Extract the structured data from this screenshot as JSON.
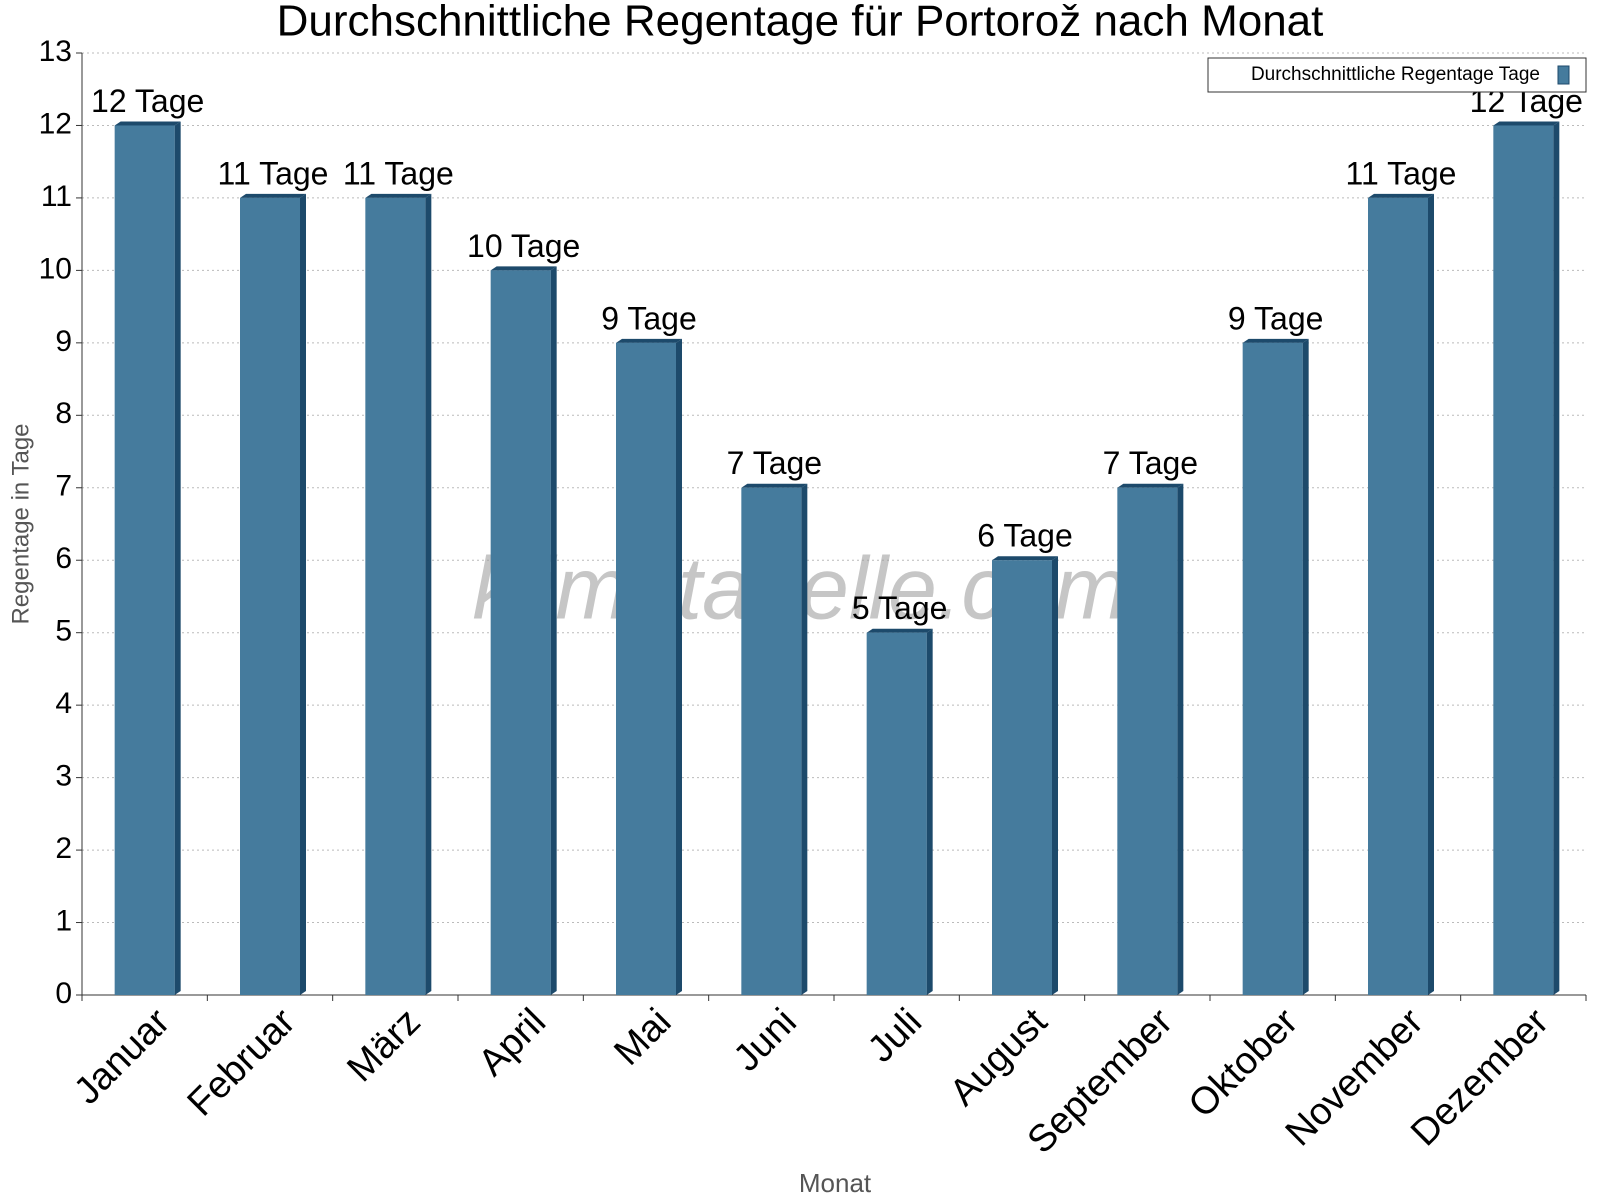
{
  "chart_data": {
    "type": "bar",
    "title": "Durchschnittliche Regentage für Portorož nach Monat",
    "x_label": "Monat",
    "y_label": "Regentage in Tage",
    "watermark": "klimatabelle.com",
    "categories": [
      "Januar",
      "Februar",
      "März",
      "April",
      "Mai",
      "Juni",
      "Juli",
      "August",
      "September",
      "Oktober",
      "November",
      "Dezember"
    ],
    "series": [
      {
        "name": "Durchschnittliche Regentage Tage",
        "color": "#457b9d",
        "values": [
          12,
          11,
          11,
          10,
          9,
          7,
          5,
          6,
          7,
          9,
          11,
          12
        ],
        "value_labels": [
          "12 Tage",
          "11 Tage",
          "11 Tage",
          "10 Tage",
          "9 Tage",
          "7 Tage",
          "5 Tage",
          "6 Tage",
          "7 Tage",
          "9 Tage",
          "11 Tage",
          "12 Tage"
        ]
      }
    ],
    "ylim": [
      0,
      13
    ],
    "yticks": [
      0,
      1,
      2,
      3,
      4,
      5,
      6,
      7,
      8,
      9,
      10,
      11,
      12,
      13
    ],
    "grid": true,
    "legend": "top-right"
  }
}
